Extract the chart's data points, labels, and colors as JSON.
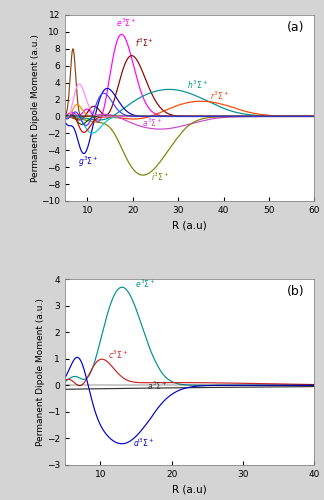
{
  "fig_bg": "#d4d4d4",
  "axes_bg": "#ffffff",
  "panel_a": {
    "title": "(a)",
    "xlabel": "R (a.u)",
    "ylabel": "Permanent Dipole Moment (a.u.)",
    "xlim": [
      5,
      60
    ],
    "ylim": [
      -10,
      12
    ],
    "xticks": [
      10,
      20,
      30,
      40,
      50,
      60
    ],
    "yticks": [
      -10,
      -8,
      -6,
      -4,
      -2,
      0,
      2,
      4,
      6,
      8,
      10,
      12
    ]
  },
  "panel_b": {
    "title": "(b)",
    "xlabel": "R (a.u)",
    "ylabel": "Permanent Dipole Moment (a.u.)",
    "xlim": [
      5,
      40
    ],
    "ylim": [
      -3,
      4
    ],
    "xticks": [
      10,
      20,
      30,
      40
    ],
    "yticks": [
      -3,
      -2,
      -1,
      0,
      1,
      2,
      3,
      4
    ]
  }
}
